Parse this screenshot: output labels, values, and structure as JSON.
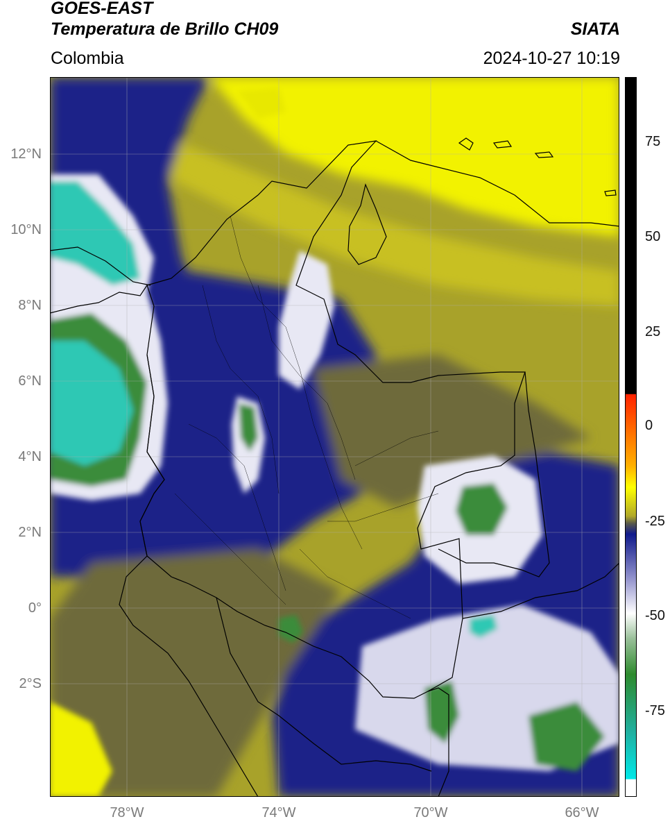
{
  "title": {
    "line1": "GOES-EAST",
    "line2": "Temperatura de Brillo CH09",
    "region": "Colombia",
    "source": "SIATA",
    "datetime": "2024-10-27 10:19"
  },
  "axes": {
    "lat_labels": [
      "12°N",
      "10°N",
      "8°N",
      "6°N",
      "4°N",
      "2°N",
      "0°",
      "2°S"
    ],
    "lon_labels": [
      "78°W",
      "74°W",
      "70°W",
      "66°W"
    ]
  },
  "colorbar": {
    "tick_labels": [
      "75",
      "50",
      "25",
      "0",
      "-25",
      "-50",
      "-75"
    ],
    "tick_values": [
      75,
      50,
      25,
      0,
      -25,
      -50,
      -75
    ],
    "range": [
      -95,
      90
    ],
    "colors": {
      "warm": "#000000",
      "red": "#ff2200",
      "orange": "#ff9900",
      "yellow": "#ffff00",
      "olive": "#8a8a30",
      "navy": "#101a8c",
      "white": "#ffffff",
      "green": "#2e8b2e",
      "cyan": "#00e0e0"
    }
  },
  "map": {
    "extent": {
      "lon": [
        -80,
        -65
      ],
      "lat": [
        -5,
        14
      ]
    },
    "colors": {
      "yellow": "#f2f200",
      "olive_light": "#c8c020",
      "olive": "#a8a22a",
      "olive_dark": "#6e6a3a",
      "navy": "#1c2288",
      "white_cloud": "#e8e8f4",
      "green": "#3a8c3a",
      "cyan": "#2ec8b4"
    }
  }
}
